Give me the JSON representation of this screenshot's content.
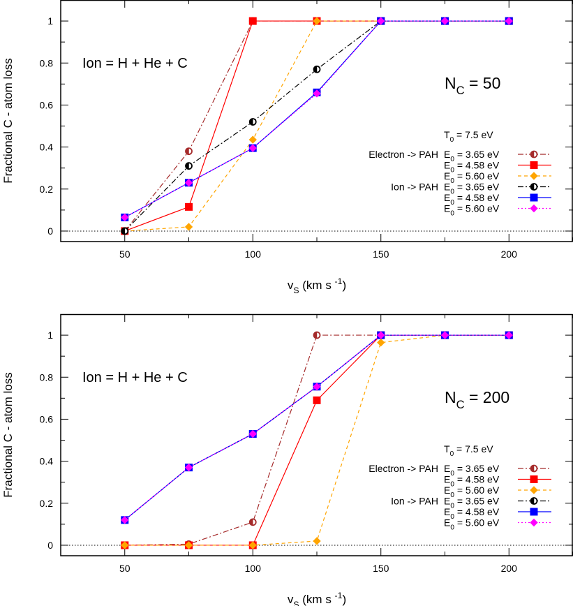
{
  "chart_data": [
    {
      "type": "line",
      "ylabel": "Fractional C - atom loss",
      "xlabel": {
        "main": "v",
        "sub": "S",
        "unit": "(km s",
        "sup": "-1",
        "close": ")"
      },
      "xlim": [
        25,
        225
      ],
      "ylim": [
        -0.05,
        1.1
      ],
      "xticks": [
        50,
        100,
        150,
        200
      ],
      "yticks": [
        0,
        0.2,
        0.4,
        0.6,
        0.8,
        1
      ],
      "ytick_labels": [
        "0",
        "0.2",
        "0.4",
        "0.6",
        "0.8",
        "1"
      ],
      "annotation_ion": "Ion = H + He + C",
      "annotation_nc": {
        "main": "N",
        "sub": "C",
        "rest": " = 50"
      },
      "t0": {
        "main": "T",
        "sub": "0",
        "rest": "  = 7.5 eV"
      },
      "group_labels": [
        "Electron -> PAH",
        "Ion -> PAH"
      ],
      "series": [
        {
          "name": "E0 = 3.65 eV",
          "main": "E",
          "sub": "0",
          "rest": " = 3.65 eV",
          "group": 0,
          "color": "#a52a2a",
          "dash": "dashdot",
          "marker": "halfcircle",
          "x": [
            50,
            75,
            100,
            125,
            150,
            175,
            200
          ],
          "y": [
            0.0,
            0.38,
            1.0,
            1.0,
            1.0,
            1.0,
            1.0
          ]
        },
        {
          "name": "E0 = 4.58 eV",
          "main": "E",
          "sub": "0",
          "rest": " = 4.58 eV",
          "group": -1,
          "color": "#ff0000",
          "dash": "solid",
          "marker": "square",
          "x": [
            50,
            75,
            100,
            125,
            150,
            175,
            200
          ],
          "y": [
            0.0,
            0.115,
            1.0,
            1.0,
            1.0,
            1.0,
            1.0
          ]
        },
        {
          "name": "E0 = 5.60 eV",
          "main": "E",
          "sub": "0",
          "rest": " = 5.60 eV",
          "group": -1,
          "color": "#ffa500",
          "dash": "dashed",
          "marker": "diamond",
          "x": [
            50,
            75,
            100,
            125,
            150,
            175,
            200
          ],
          "y": [
            0.0,
            0.02,
            0.435,
            1.0,
            1.0,
            1.0,
            1.0
          ]
        },
        {
          "name": "E0 = 3.65 eV",
          "main": "E",
          "sub": "0",
          "rest": " = 3.65 eV",
          "group": 1,
          "color": "#000000",
          "dash": "dashdot",
          "marker": "halfcircle",
          "x": [
            50,
            75,
            100,
            125,
            150,
            175,
            200
          ],
          "y": [
            0.0,
            0.31,
            0.52,
            0.77,
            1.0,
            1.0,
            1.0
          ]
        },
        {
          "name": "E0 = 4.58 eV",
          "main": "E",
          "sub": "0",
          "rest": " = 4.58 eV",
          "group": -1,
          "color": "#0000ff",
          "dash": "solid",
          "marker": "square",
          "x": [
            50,
            75,
            100,
            125,
            150,
            175,
            200
          ],
          "y": [
            0.065,
            0.23,
            0.395,
            0.66,
            1.0,
            1.0,
            1.0
          ]
        },
        {
          "name": "E0 = 5.60 eV",
          "main": "E",
          "sub": "0",
          "rest": " = 5.60 eV",
          "group": -1,
          "color": "#ff00ff",
          "dash": "dotted",
          "marker": "diamond",
          "x": [
            50,
            75,
            100,
            125,
            150,
            175,
            200
          ],
          "y": [
            0.065,
            0.23,
            0.395,
            0.655,
            1.0,
            1.0,
            1.0
          ]
        }
      ]
    },
    {
      "type": "line",
      "ylabel": "Fractional C - atom loss",
      "xlabel": {
        "main": "v",
        "sub": "S",
        "unit": "(km s",
        "sup": "-1",
        "close": ")"
      },
      "xlim": [
        25,
        225
      ],
      "ylim": [
        -0.05,
        1.1
      ],
      "xticks": [
        50,
        100,
        150,
        200
      ],
      "yticks": [
        0,
        0.2,
        0.4,
        0.6,
        0.8,
        1
      ],
      "ytick_labels": [
        "0",
        "0.2",
        "0.4",
        "0.6",
        "0.8",
        "1"
      ],
      "annotation_ion": "Ion = H + He + C",
      "annotation_nc": {
        "main": "N",
        "sub": "C",
        "rest": " = 200"
      },
      "t0": {
        "main": "T",
        "sub": "0",
        "rest": "  = 7.5 eV"
      },
      "group_labels": [
        "Electron -> PAH",
        "Ion -> PAH"
      ],
      "series": [
        {
          "name": "E0 = 3.65 eV",
          "main": "E",
          "sub": "0",
          "rest": " = 3.65 eV",
          "group": 0,
          "color": "#a52a2a",
          "dash": "dashdot",
          "marker": "halfcircle",
          "x": [
            50,
            75,
            100,
            125,
            150,
            175,
            200
          ],
          "y": [
            0.0,
            0.005,
            0.11,
            1.0,
            1.0,
            1.0,
            1.0
          ]
        },
        {
          "name": "E0 = 4.58 eV",
          "main": "E",
          "sub": "0",
          "rest": " = 4.58 eV",
          "group": -1,
          "color": "#ff0000",
          "dash": "solid",
          "marker": "square",
          "x": [
            50,
            75,
            100,
            125,
            150,
            175,
            200
          ],
          "y": [
            0.0,
            0.0,
            0.0,
            0.69,
            1.0,
            1.0,
            1.0
          ]
        },
        {
          "name": "E0 = 5.60 eV",
          "main": "E",
          "sub": "0",
          "rest": " = 5.60 eV",
          "group": -1,
          "color": "#ffa500",
          "dash": "dashed",
          "marker": "diamond",
          "x": [
            50,
            75,
            100,
            125,
            150,
            175,
            200
          ],
          "y": [
            0.0,
            0.0,
            0.0,
            0.02,
            0.965,
            1.0,
            1.0
          ]
        },
        {
          "name": "E0 = 3.65 eV",
          "main": "E",
          "sub": "0",
          "rest": " = 3.65 eV",
          "group": 1,
          "color": "#000000",
          "dash": "dashdot",
          "marker": "halfcircle",
          "x": [
            50,
            75,
            100,
            125,
            150,
            175,
            200
          ],
          "y": [
            0.12,
            0.37,
            0.53,
            0.755,
            1.0,
            1.0,
            1.0
          ]
        },
        {
          "name": "E0 = 4.58 eV",
          "main": "E",
          "sub": "0",
          "rest": " = 4.58 eV",
          "group": -1,
          "color": "#0000ff",
          "dash": "solid",
          "marker": "square",
          "x": [
            50,
            75,
            100,
            125,
            150,
            175,
            200
          ],
          "y": [
            0.12,
            0.37,
            0.53,
            0.755,
            1.0,
            1.0,
            1.0
          ]
        },
        {
          "name": "E0 = 5.60 eV",
          "main": "E",
          "sub": "0",
          "rest": " = 5.60 eV",
          "group": -1,
          "color": "#ff00ff",
          "dash": "dotted",
          "marker": "diamond",
          "x": [
            50,
            75,
            100,
            125,
            150,
            175,
            200
          ],
          "y": [
            0.12,
            0.37,
            0.53,
            0.755,
            1.0,
            1.0,
            1.0
          ]
        }
      ]
    }
  ]
}
